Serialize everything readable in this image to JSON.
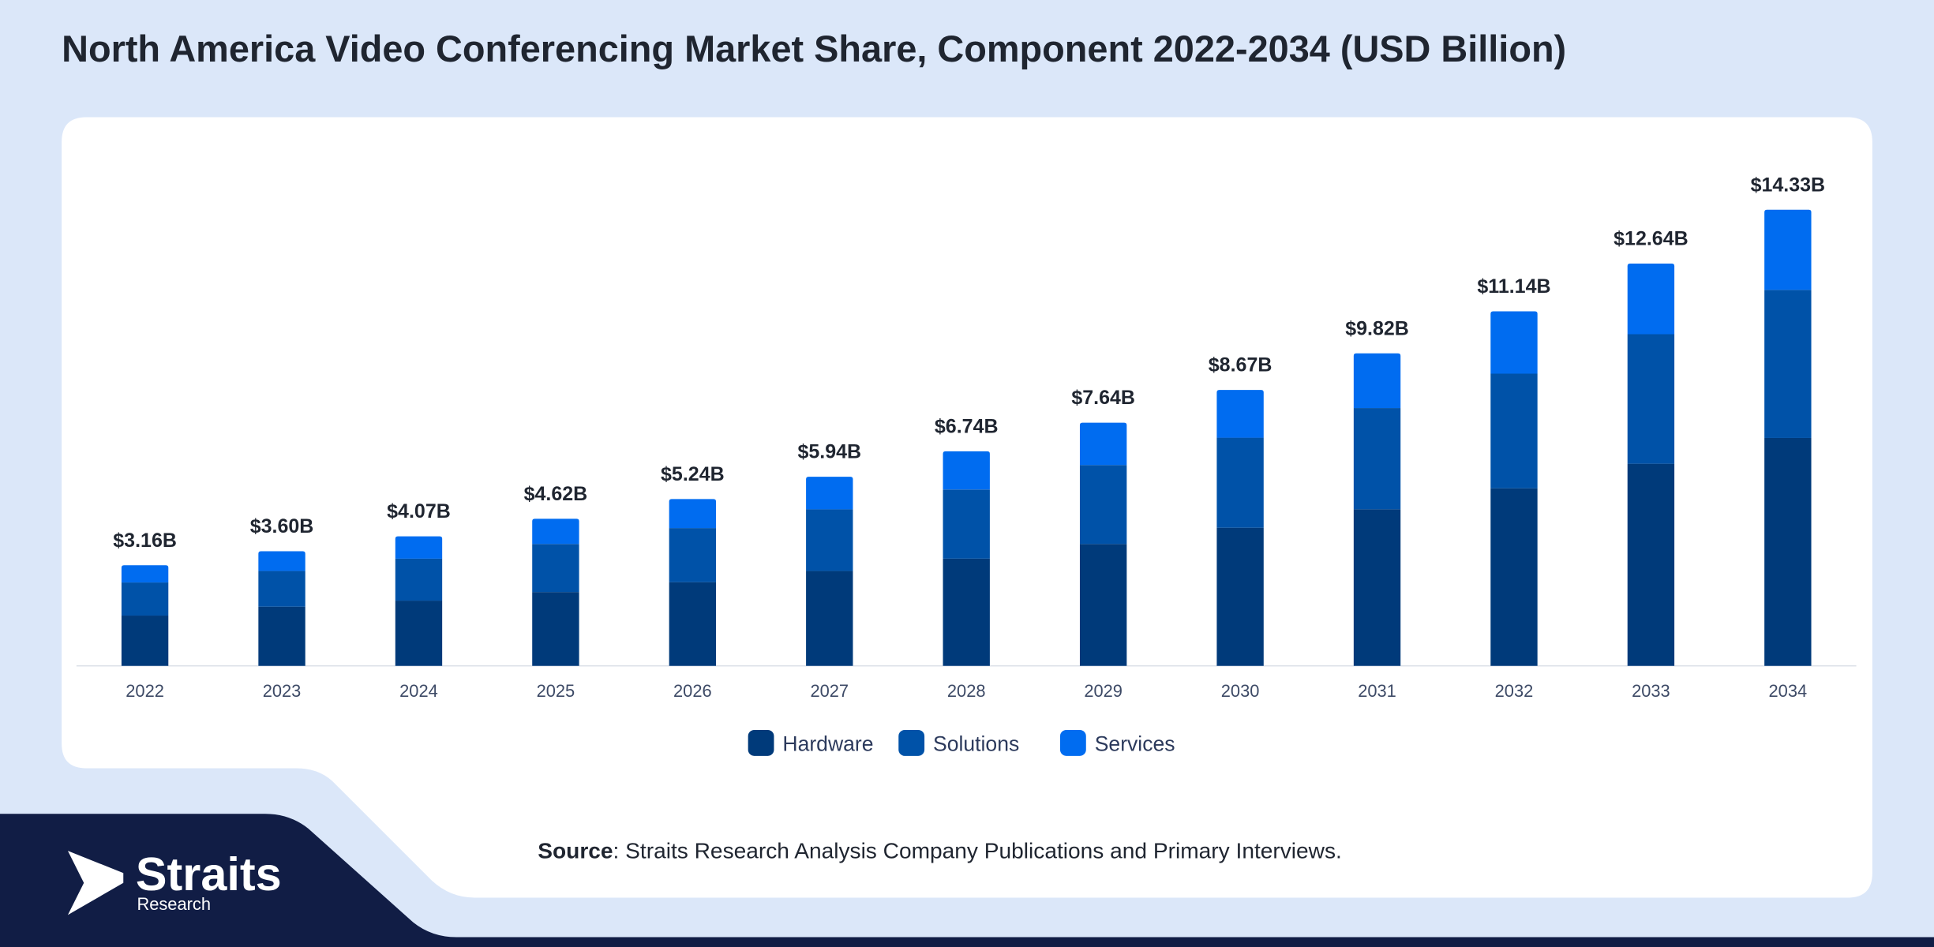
{
  "chart_data": {
    "type": "stacked-bar",
    "title": "North America Video Conferencing Market Share, Component 2022-2034 (USD Billion)",
    "categories": [
      "2022",
      "2023",
      "2024",
      "2025",
      "2026",
      "2027",
      "2028",
      "2029",
      "2030",
      "2031",
      "2032",
      "2033",
      "2034"
    ],
    "series": [
      {
        "name": "Hardware",
        "color": "#003a7a",
        "values": [
          1.58,
          1.86,
          2.05,
          2.32,
          2.63,
          2.98,
          3.37,
          3.83,
          4.34,
          4.92,
          5.58,
          6.35,
          7.16
        ]
      },
      {
        "name": "Solutions",
        "color": "#0052a8",
        "values": [
          1.04,
          1.12,
          1.32,
          1.51,
          1.7,
          1.94,
          2.17,
          2.48,
          2.83,
          3.18,
          3.6,
          4.07,
          4.65
        ]
      },
      {
        "name": "Services",
        "color": "#006cf0",
        "values": [
          0.54,
          0.62,
          0.7,
          0.79,
          0.91,
          1.02,
          1.2,
          1.33,
          1.5,
          1.72,
          1.96,
          2.22,
          2.52
        ]
      }
    ],
    "totals": {
      "values": [
        3.16,
        3.6,
        4.07,
        4.62,
        5.24,
        5.94,
        6.74,
        7.64,
        8.67,
        9.82,
        11.14,
        12.64,
        14.33
      ],
      "value_labels": [
        "$3.16B",
        "$3.60B",
        "$4.07B",
        "$4.62B",
        "$5.24B",
        "$5.94B",
        "$6.74B",
        "$7.64B",
        "$8.67B",
        "$9.82B",
        "$11.14B",
        "$12.64B",
        "$14.33B"
      ]
    },
    "ylim": [
      0,
      16
    ],
    "legend": "bottom"
  },
  "source": {
    "label": "Source",
    "text": ": Straits Research Analysis Company Publications and Primary Interviews."
  },
  "logo": {
    "name": "Straits",
    "subtitle": "Research"
  }
}
